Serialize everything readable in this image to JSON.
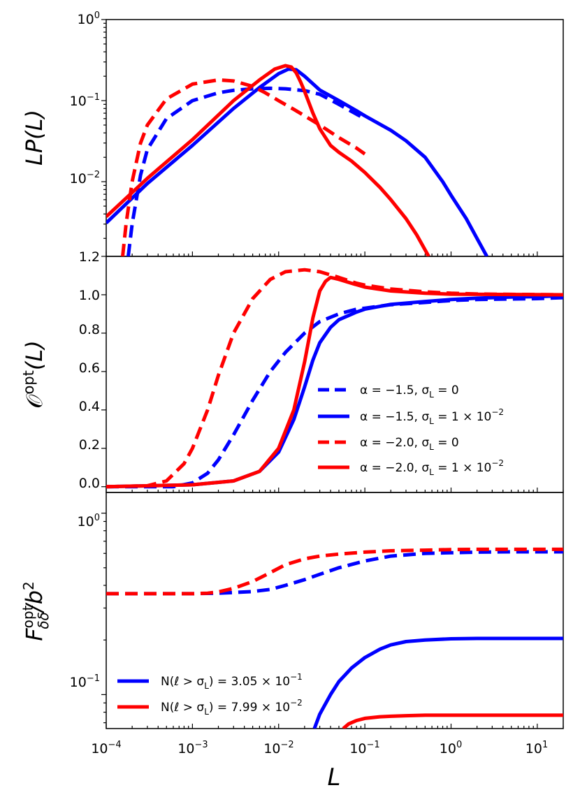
{
  "colors": {
    "blue": "#0000ff",
    "red": "#ff0000",
    "axis": "#000000"
  },
  "xlabel": "L",
  "x_tick_labels": [
    {
      "base": "10",
      "exp": "−4",
      "value": 0.0001
    },
    {
      "base": "10",
      "exp": "−3",
      "value": 0.001
    },
    {
      "base": "10",
      "exp": "−2",
      "value": 0.01
    },
    {
      "base": "10",
      "exp": "−1",
      "value": 0.1
    },
    {
      "base": "10",
      "exp": "0",
      "value": 1
    },
    {
      "base": "10",
      "exp": "1",
      "value": 10
    }
  ],
  "panels": {
    "top": {
      "ylabel": "LP(L)",
      "y_tick_labels": [
        {
          "base": "10",
          "exp": "0",
          "value": 1
        },
        {
          "base": "10",
          "exp": "−1",
          "value": 0.1
        },
        {
          "base": "10",
          "exp": "−2",
          "value": 0.01
        }
      ]
    },
    "middle": {
      "ylabel_main": "𝒪",
      "ylabel_sup": "opt",
      "ylabel_tail": "(L)",
      "y_tick_labels": [
        "0.0",
        "0.2",
        "0.4",
        "0.6",
        "0.8",
        "1.0",
        "1.2"
      ],
      "legend": [
        {
          "text": "α = −1.5,  σ",
          "sub": "L",
          "tail": " = 0"
        },
        {
          "text": "α = −1.5,  σ",
          "sub": "L",
          "tail": " = 1 × 10",
          "sup": "−2"
        },
        {
          "text": "α = −2.0,  σ",
          "sub": "L",
          "tail": " = 0"
        },
        {
          "text": "α = −2.0,  σ",
          "sub": "L",
          "tail": " = 1 × 10",
          "sup": "−2"
        }
      ]
    },
    "bottom": {
      "ylabel_main": "F",
      "ylabel_sup": "opt",
      "ylabel_sub": "δδ",
      "ylabel_tail": "/b",
      "ylabel_tail_sup": "2",
      "y_tick_labels": [
        {
          "base": "10",
          "exp": "0",
          "value": 1
        },
        {
          "base": "10",
          "exp": "−1",
          "value": 0.1
        }
      ],
      "legend": [
        {
          "text": "N(ℓ > σ",
          "sub": "L",
          "tail": ") = 3.05 × 10",
          "sup": "−1"
        },
        {
          "text": "N(ℓ > σ",
          "sub": "L",
          "tail": ") = 7.99 × 10",
          "sup": "−2"
        }
      ]
    }
  },
  "chart_data": [
    {
      "type": "line",
      "panel": "top",
      "title": "",
      "xlabel": "",
      "ylabel": "LP(L)",
      "xscale": "log",
      "yscale": "log",
      "xlim": [
        0.0001,
        20
      ],
      "ylim": [
        0.0012,
        1
      ],
      "series": [
        {
          "name": "α = −1.5, σL = 0",
          "color": "blue",
          "style": "dashed",
          "x": [
            0.00018,
            0.0002,
            0.00025,
            0.0003,
            0.0005,
            0.001,
            0.002,
            0.003,
            0.005,
            0.008,
            0.012,
            0.02,
            0.03,
            0.05,
            0.08,
            0.1
          ],
          "y": [
            0.0012,
            0.003,
            0.012,
            0.025,
            0.06,
            0.1,
            0.125,
            0.134,
            0.14,
            0.142,
            0.14,
            0.133,
            0.12,
            0.09,
            0.068,
            0.06
          ]
        },
        {
          "name": "α = −1.5, σL = 1×10⁻²",
          "color": "blue",
          "style": "solid",
          "x": [
            0.0001,
            0.0003,
            0.001,
            0.003,
            0.006,
            0.01,
            0.013,
            0.016,
            0.02,
            0.03,
            0.05,
            0.08,
            0.1,
            0.2,
            0.3,
            0.5,
            0.8,
            1.0,
            1.5,
            2.0,
            2.6
          ],
          "y": [
            0.0031,
            0.0095,
            0.028,
            0.08,
            0.145,
            0.215,
            0.245,
            0.24,
            0.2,
            0.135,
            0.1,
            0.075,
            0.065,
            0.043,
            0.032,
            0.02,
            0.01,
            0.0068,
            0.0035,
            0.002,
            0.0012
          ]
        },
        {
          "name": "α = −2.0, σL = 0",
          "color": "red",
          "style": "dashed",
          "x": [
            0.000155,
            0.00017,
            0.0002,
            0.00025,
            0.0003,
            0.0005,
            0.001,
            0.002,
            0.003,
            0.005,
            0.007,
            0.01,
            0.015,
            0.02,
            0.03,
            0.05,
            0.08,
            0.1
          ],
          "y": [
            0.0012,
            0.003,
            0.01,
            0.03,
            0.05,
            0.105,
            0.16,
            0.18,
            0.175,
            0.15,
            0.125,
            0.1,
            0.078,
            0.065,
            0.05,
            0.035,
            0.026,
            0.022
          ]
        },
        {
          "name": "α = −2.0, σL = 1×10⁻²",
          "color": "red",
          "style": "solid",
          "x": [
            0.0001,
            0.0003,
            0.001,
            0.003,
            0.006,
            0.009,
            0.012,
            0.014,
            0.016,
            0.018,
            0.02,
            0.025,
            0.03,
            0.04,
            0.05,
            0.07,
            0.1,
            0.15,
            0.2,
            0.3,
            0.4,
            0.55
          ],
          "y": [
            0.0037,
            0.011,
            0.033,
            0.1,
            0.18,
            0.245,
            0.27,
            0.26,
            0.22,
            0.17,
            0.13,
            0.07,
            0.045,
            0.028,
            0.023,
            0.018,
            0.013,
            0.0085,
            0.006,
            0.0035,
            0.0022,
            0.0012
          ]
        }
      ]
    },
    {
      "type": "line",
      "panel": "middle",
      "title": "",
      "xlabel": "",
      "ylabel": "O^opt(L)",
      "xscale": "log",
      "yscale": "linear",
      "xlim": [
        0.0001,
        20
      ],
      "ylim": [
        -0.03,
        1.2
      ],
      "series": [
        {
          "name": "α = −1.5, σL = 0",
          "color": "blue",
          "style": "dashed",
          "x": [
            0.0001,
            0.0003,
            0.0006,
            0.001,
            0.0015,
            0.002,
            0.003,
            0.005,
            0.008,
            0.012,
            0.02,
            0.03,
            0.05,
            0.08,
            0.1,
            0.2,
            0.5,
            1.0,
            2.0,
            5.0,
            10.0,
            20.0
          ],
          "y": [
            0.0,
            0.0,
            0.0,
            0.02,
            0.07,
            0.14,
            0.27,
            0.45,
            0.6,
            0.7,
            0.8,
            0.86,
            0.9,
            0.925,
            0.93,
            0.948,
            0.96,
            0.97,
            0.975,
            0.978,
            0.98,
            0.985
          ]
        },
        {
          "name": "α = −1.5, σL = 1×10⁻²",
          "color": "blue",
          "style": "solid",
          "x": [
            0.0001,
            0.001,
            0.003,
            0.006,
            0.01,
            0.015,
            0.02,
            0.025,
            0.03,
            0.04,
            0.05,
            0.08,
            0.1,
            0.2,
            0.5,
            1.0,
            2.0,
            5.0,
            10.0,
            20.0
          ],
          "y": [
            0.0,
            0.01,
            0.03,
            0.08,
            0.18,
            0.35,
            0.52,
            0.66,
            0.75,
            0.83,
            0.87,
            0.91,
            0.925,
            0.95,
            0.965,
            0.975,
            0.982,
            0.988,
            0.99,
            0.995
          ]
        },
        {
          "name": "α = −2.0, σL = 0",
          "color": "red",
          "style": "dashed",
          "x": [
            0.0001,
            0.0003,
            0.0005,
            0.0008,
            0.001,
            0.0015,
            0.002,
            0.003,
            0.005,
            0.008,
            0.012,
            0.02,
            0.03,
            0.05,
            0.08,
            0.1,
            0.2,
            0.5,
            1.0,
            2.0,
            5.0,
            20.0
          ],
          "y": [
            0.0,
            0.005,
            0.03,
            0.12,
            0.2,
            0.4,
            0.58,
            0.8,
            0.98,
            1.08,
            1.12,
            1.13,
            1.12,
            1.09,
            1.06,
            1.05,
            1.03,
            1.015,
            1.008,
            1.004,
            1.002,
            1.0
          ]
        },
        {
          "name": "α = −2.0, σL = 1×10⁻²",
          "color": "red",
          "style": "solid",
          "x": [
            0.0001,
            0.001,
            0.003,
            0.006,
            0.01,
            0.015,
            0.02,
            0.025,
            0.03,
            0.035,
            0.04,
            0.045,
            0.05,
            0.07,
            0.1,
            0.2,
            0.5,
            1.0,
            20.0
          ],
          "y": [
            0.0,
            0.01,
            0.03,
            0.08,
            0.2,
            0.4,
            0.65,
            0.88,
            1.02,
            1.07,
            1.09,
            1.085,
            1.08,
            1.06,
            1.04,
            1.02,
            1.008,
            1.003,
            1.0
          ]
        }
      ]
    },
    {
      "type": "line",
      "panel": "bottom",
      "title": "",
      "xlabel": "L",
      "ylabel": "F^opt_δδ / b^2",
      "xscale": "log",
      "yscale": "log",
      "xlim": [
        0.0001,
        20
      ],
      "ylim": [
        0.065,
        1.3
      ],
      "series": [
        {
          "name": "blue dashed",
          "color": "blue",
          "style": "dashed",
          "x": [
            0.0001,
            0.001,
            0.002,
            0.003,
            0.005,
            0.008,
            0.012,
            0.02,
            0.03,
            0.05,
            0.08,
            0.1,
            0.2,
            0.5,
            1.0,
            2.0,
            5.0,
            20.0
          ],
          "y": [
            0.36,
            0.36,
            0.362,
            0.365,
            0.37,
            0.38,
            0.4,
            0.43,
            0.46,
            0.5,
            0.53,
            0.545,
            0.58,
            0.6,
            0.605,
            0.61,
            0.612,
            0.612
          ]
        },
        {
          "name": "N(ℓ > σL) = 3.05×10⁻¹",
          "color": "blue",
          "style": "solid",
          "x": [
            0.026,
            0.03,
            0.04,
            0.05,
            0.07,
            0.1,
            0.15,
            0.2,
            0.3,
            0.5,
            1.0,
            2.0,
            5.0,
            20.0
          ],
          "y": [
            0.065,
            0.078,
            0.1,
            0.118,
            0.14,
            0.16,
            0.178,
            0.188,
            0.196,
            0.2,
            0.203,
            0.204,
            0.204,
            0.204
          ]
        },
        {
          "name": "red dashed",
          "color": "red",
          "style": "dashed",
          "x": [
            0.0001,
            0.001,
            0.0015,
            0.002,
            0.003,
            0.005,
            0.008,
            0.012,
            0.02,
            0.03,
            0.05,
            0.1,
            0.2,
            0.5,
            1.0,
            2.0,
            5.0,
            20.0
          ],
          "y": [
            0.36,
            0.36,
            0.362,
            0.368,
            0.385,
            0.42,
            0.47,
            0.52,
            0.56,
            0.58,
            0.595,
            0.61,
            0.62,
            0.625,
            0.63,
            0.632,
            0.632,
            0.632
          ]
        },
        {
          "name": "N(ℓ > σL) = 7.99×10⁻²",
          "color": "red",
          "style": "solid",
          "x": [
            0.056,
            0.065,
            0.08,
            0.1,
            0.15,
            0.2,
            0.3,
            0.5,
            1.0,
            2.0,
            5.0,
            20.0
          ],
          "y": [
            0.065,
            0.069,
            0.072,
            0.074,
            0.0755,
            0.076,
            0.0765,
            0.077,
            0.077,
            0.077,
            0.077,
            0.077
          ]
        }
      ]
    }
  ]
}
